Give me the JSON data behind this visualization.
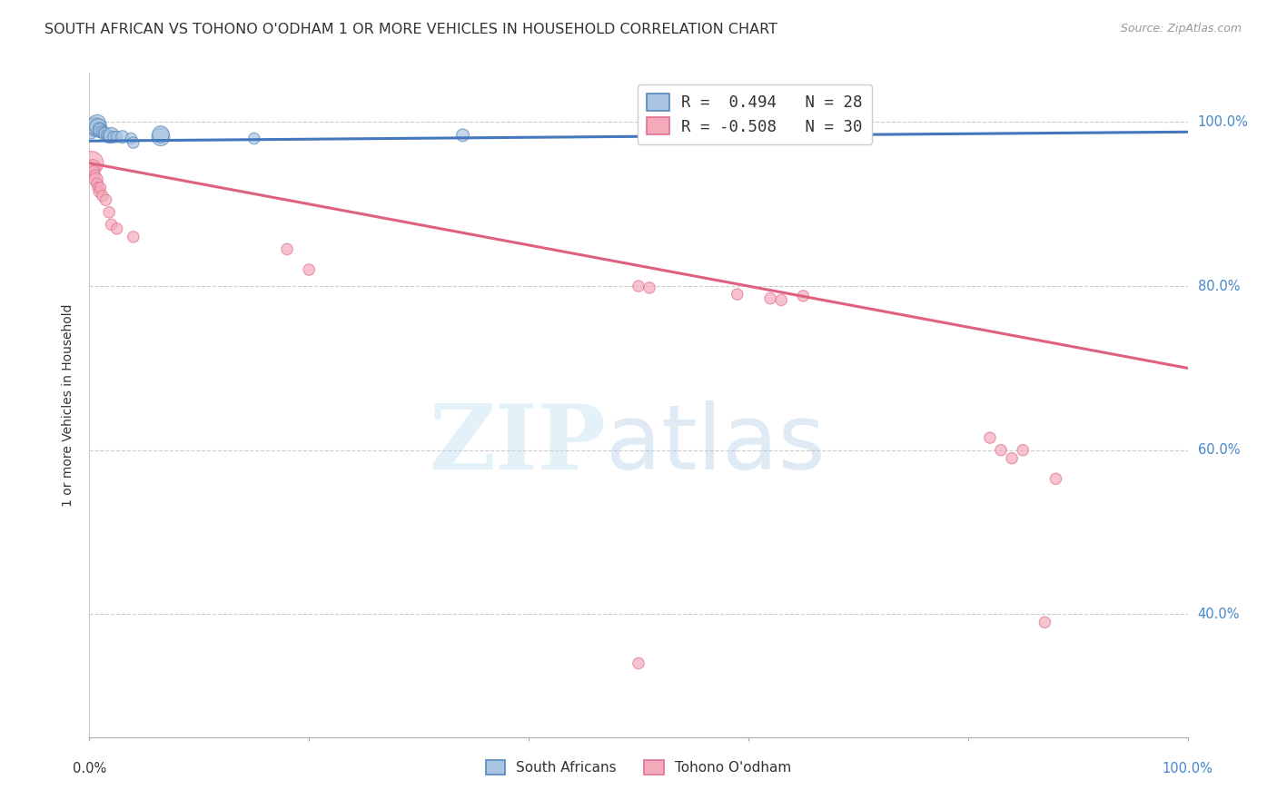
{
  "title": "SOUTH AFRICAN VS TOHONO O'ODHAM 1 OR MORE VEHICLES IN HOUSEHOLD CORRELATION CHART",
  "source": "Source: ZipAtlas.com",
  "ylabel": "1 or more Vehicles in Household",
  "legend_blue_r": "R =  0.494",
  "legend_blue_n": "N = 28",
  "legend_pink_r": "R = -0.508",
  "legend_pink_n": "N = 30",
  "legend_label_blue": "South Africans",
  "legend_label_pink": "Tohono O'odham",
  "blue_color": "#A8C4E0",
  "pink_color": "#F4AABB",
  "blue_edge_color": "#5588BB",
  "pink_edge_color": "#E07090",
  "blue_line_color": "#4477BB",
  "pink_line_color": "#E06080",
  "right_axis_color": "#4488CC",
  "blue_points": [
    [
      0.002,
      0.985
    ],
    [
      0.003,
      0.995
    ],
    [
      0.004,
      0.998
    ],
    [
      0.005,
      0.99
    ],
    [
      0.005,
      0.995
    ],
    [
      0.007,
      0.995
    ],
    [
      0.007,
      0.998
    ],
    [
      0.008,
      0.994
    ],
    [
      0.009,
      0.992
    ],
    [
      0.009,
      0.988
    ],
    [
      0.01,
      0.99
    ],
    [
      0.012,
      0.988
    ],
    [
      0.013,
      0.987
    ],
    [
      0.015,
      0.985
    ],
    [
      0.016,
      0.984
    ],
    [
      0.018,
      0.982
    ],
    [
      0.02,
      0.984
    ],
    [
      0.022,
      0.982
    ],
    [
      0.025,
      0.982
    ],
    [
      0.03,
      0.982
    ],
    [
      0.038,
      0.98
    ],
    [
      0.04,
      0.975
    ],
    [
      0.065,
      0.982
    ],
    [
      0.065,
      0.985
    ],
    [
      0.15,
      0.98
    ],
    [
      0.34,
      0.984
    ],
    [
      0.62,
      0.985
    ],
    [
      0.63,
      0.987
    ]
  ],
  "blue_sizes": [
    50,
    120,
    80,
    100,
    200,
    150,
    200,
    180,
    100,
    80,
    120,
    100,
    80,
    120,
    80,
    100,
    150,
    80,
    80,
    100,
    80,
    80,
    200,
    180,
    80,
    100,
    80,
    80
  ],
  "pink_points": [
    [
      0.002,
      0.95
    ],
    [
      0.003,
      0.945
    ],
    [
      0.004,
      0.94
    ],
    [
      0.005,
      0.935
    ],
    [
      0.006,
      0.93
    ],
    [
      0.007,
      0.925
    ],
    [
      0.008,
      0.92
    ],
    [
      0.009,
      0.915
    ],
    [
      0.01,
      0.92
    ],
    [
      0.012,
      0.91
    ],
    [
      0.015,
      0.905
    ],
    [
      0.018,
      0.89
    ],
    [
      0.02,
      0.875
    ],
    [
      0.025,
      0.87
    ],
    [
      0.04,
      0.86
    ],
    [
      0.18,
      0.845
    ],
    [
      0.2,
      0.82
    ],
    [
      0.5,
      0.8
    ],
    [
      0.51,
      0.798
    ],
    [
      0.59,
      0.79
    ],
    [
      0.62,
      0.785
    ],
    [
      0.63,
      0.783
    ],
    [
      0.65,
      0.788
    ],
    [
      0.82,
      0.615
    ],
    [
      0.83,
      0.6
    ],
    [
      0.84,
      0.59
    ],
    [
      0.85,
      0.6
    ],
    [
      0.87,
      0.39
    ],
    [
      0.88,
      0.565
    ],
    [
      0.5,
      0.34
    ]
  ],
  "pink_sizes": [
    350,
    150,
    80,
    80,
    120,
    80,
    80,
    80,
    80,
    80,
    80,
    80,
    80,
    80,
    80,
    80,
    80,
    80,
    80,
    80,
    80,
    80,
    80,
    80,
    80,
    80,
    80,
    80,
    80,
    80
  ],
  "blue_trendline": [
    [
      0.0,
      0.977
    ],
    [
      1.0,
      0.988
    ]
  ],
  "pink_trendline": [
    [
      0.0,
      0.95
    ],
    [
      1.0,
      0.7
    ]
  ],
  "ylim": [
    0.25,
    1.06
  ],
  "xlim": [
    0.0,
    1.0
  ],
  "yticks": [
    0.4,
    0.6,
    0.8,
    1.0
  ],
  "ytick_labels": [
    "40.0%",
    "60.0%",
    "80.0%",
    "100.0%"
  ],
  "xtick_positions": [
    0.0,
    0.2,
    0.4,
    0.6,
    0.8,
    1.0
  ],
  "grid_color": "#CCCCCC",
  "background_color": "#FFFFFF",
  "title_fontsize": 11.5,
  "source_fontsize": 9
}
